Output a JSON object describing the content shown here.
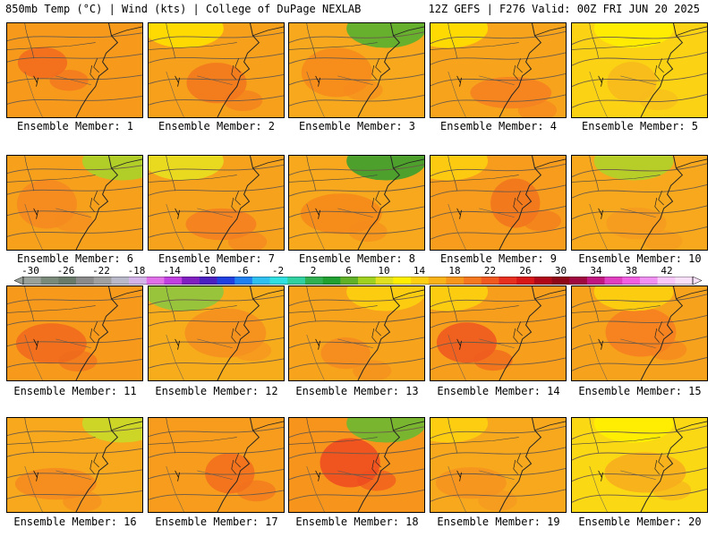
{
  "header": {
    "left": "850mb Temp (°C) | Wind (kts) | College of DuPage NEXLAB",
    "right": "12Z GEFS | F276 Valid: 00Z FRI JUN 20 2025"
  },
  "members": [
    {
      "label": "Ensemble Member: 1",
      "base": "#f79a1c",
      "hot": "#f26d1e",
      "cool": null
    },
    {
      "label": "Ensemble Member: 2",
      "base": "#f7a01c",
      "hot": "#f2781e",
      "cool": "#ffe000"
    },
    {
      "label": "Ensemble Member: 3",
      "base": "#f7a81c",
      "hot": "#f68a1c",
      "cool": "#55b030"
    },
    {
      "label": "Ensemble Member: 4",
      "base": "#f7a41c",
      "hot": "#f58220",
      "cool": "#ffdf00"
    },
    {
      "label": "Ensemble Member: 5",
      "base": "#fbd314",
      "hot": "#f7ba1c",
      "cool": "#ffee00"
    },
    {
      "label": "Ensemble Member: 6",
      "base": "#f7a01c",
      "hot": "#f58a20",
      "cool": "#a8d22a"
    },
    {
      "label": "Ensemble Member: 7",
      "base": "#f7a21c",
      "hot": "#f48020",
      "cool": "#e8e020"
    },
    {
      "label": "Ensemble Member: 8",
      "base": "#f7a81c",
      "hot": "#f58a1c",
      "cool": "#3a9e2e"
    },
    {
      "label": "Ensemble Member: 9",
      "base": "#f79c1c",
      "hot": "#f2761e",
      "cool": "#fccf10"
    },
    {
      "label": "Ensemble Member: 10",
      "base": "#f7a81c",
      "hot": "#f59a20",
      "cool": "#b0d22a"
    },
    {
      "label": "Ensemble Member: 11",
      "base": "#f79a1c",
      "hot": "#f06a1e",
      "cool": null
    },
    {
      "label": "Ensemble Member: 12",
      "base": "#f7ac1c",
      "hot": "#f59020",
      "cool": "#8cc63f"
    },
    {
      "label": "Ensemble Member: 13",
      "base": "#f7a41c",
      "hot": "#f58c20",
      "cool": "#fcd010"
    },
    {
      "label": "Ensemble Member: 14",
      "base": "#f79e1c",
      "hot": "#ee5a20",
      "cool": "#fcd010"
    },
    {
      "label": "Ensemble Member: 15",
      "base": "#f7a21c",
      "hot": "#f58020",
      "cool": "#fcd010"
    },
    {
      "label": "Ensemble Member: 16",
      "base": "#f7a81c",
      "hot": "#f58a20",
      "cool": "#c8da28"
    },
    {
      "label": "Ensemble Member: 17",
      "base": "#f79c1c",
      "hot": "#f2701e",
      "cool": null
    },
    {
      "label": "Ensemble Member: 18",
      "base": "#f7941c",
      "hot": "#ee4c20",
      "cool": "#6ab832"
    },
    {
      "label": "Ensemble Member: 19",
      "base": "#f7a81c",
      "hot": "#f59420",
      "cool": "#fcd010"
    },
    {
      "label": "Ensemble Member: 20",
      "base": "#fbd814",
      "hot": "#f7ae1c",
      "cool": "#fff000"
    }
  ],
  "colorbar": {
    "ticks": [
      "-30",
      "-26",
      "-22",
      "-18",
      "-14",
      "-10",
      "-6",
      "-2",
      "2",
      "6",
      "10",
      "14",
      "18",
      "22",
      "26",
      "30",
      "34",
      "38",
      "42"
    ],
    "colors": [
      "#9aa09a",
      "#7a8a7a",
      "#6a7a6a",
      "#8a8a8a",
      "#a0a0a0",
      "#b8b8c8",
      "#d4b4e8",
      "#e070e8",
      "#c040e0",
      "#8020c0",
      "#4a20c0",
      "#2040e0",
      "#2080f0",
      "#30c0f0",
      "#30e0e0",
      "#30d0a0",
      "#30b050",
      "#20a030",
      "#60b028",
      "#a0d020",
      "#e0e020",
      "#ffee00",
      "#fcd010",
      "#f9b218",
      "#f7961c",
      "#f47820",
      "#f05a20",
      "#e83020",
      "#d81818",
      "#b00818",
      "#900818",
      "#a00840",
      "#c01880",
      "#e040c0",
      "#f060e0",
      "#f090f0",
      "#f8c8f8",
      "#f8e0f8"
    ]
  }
}
